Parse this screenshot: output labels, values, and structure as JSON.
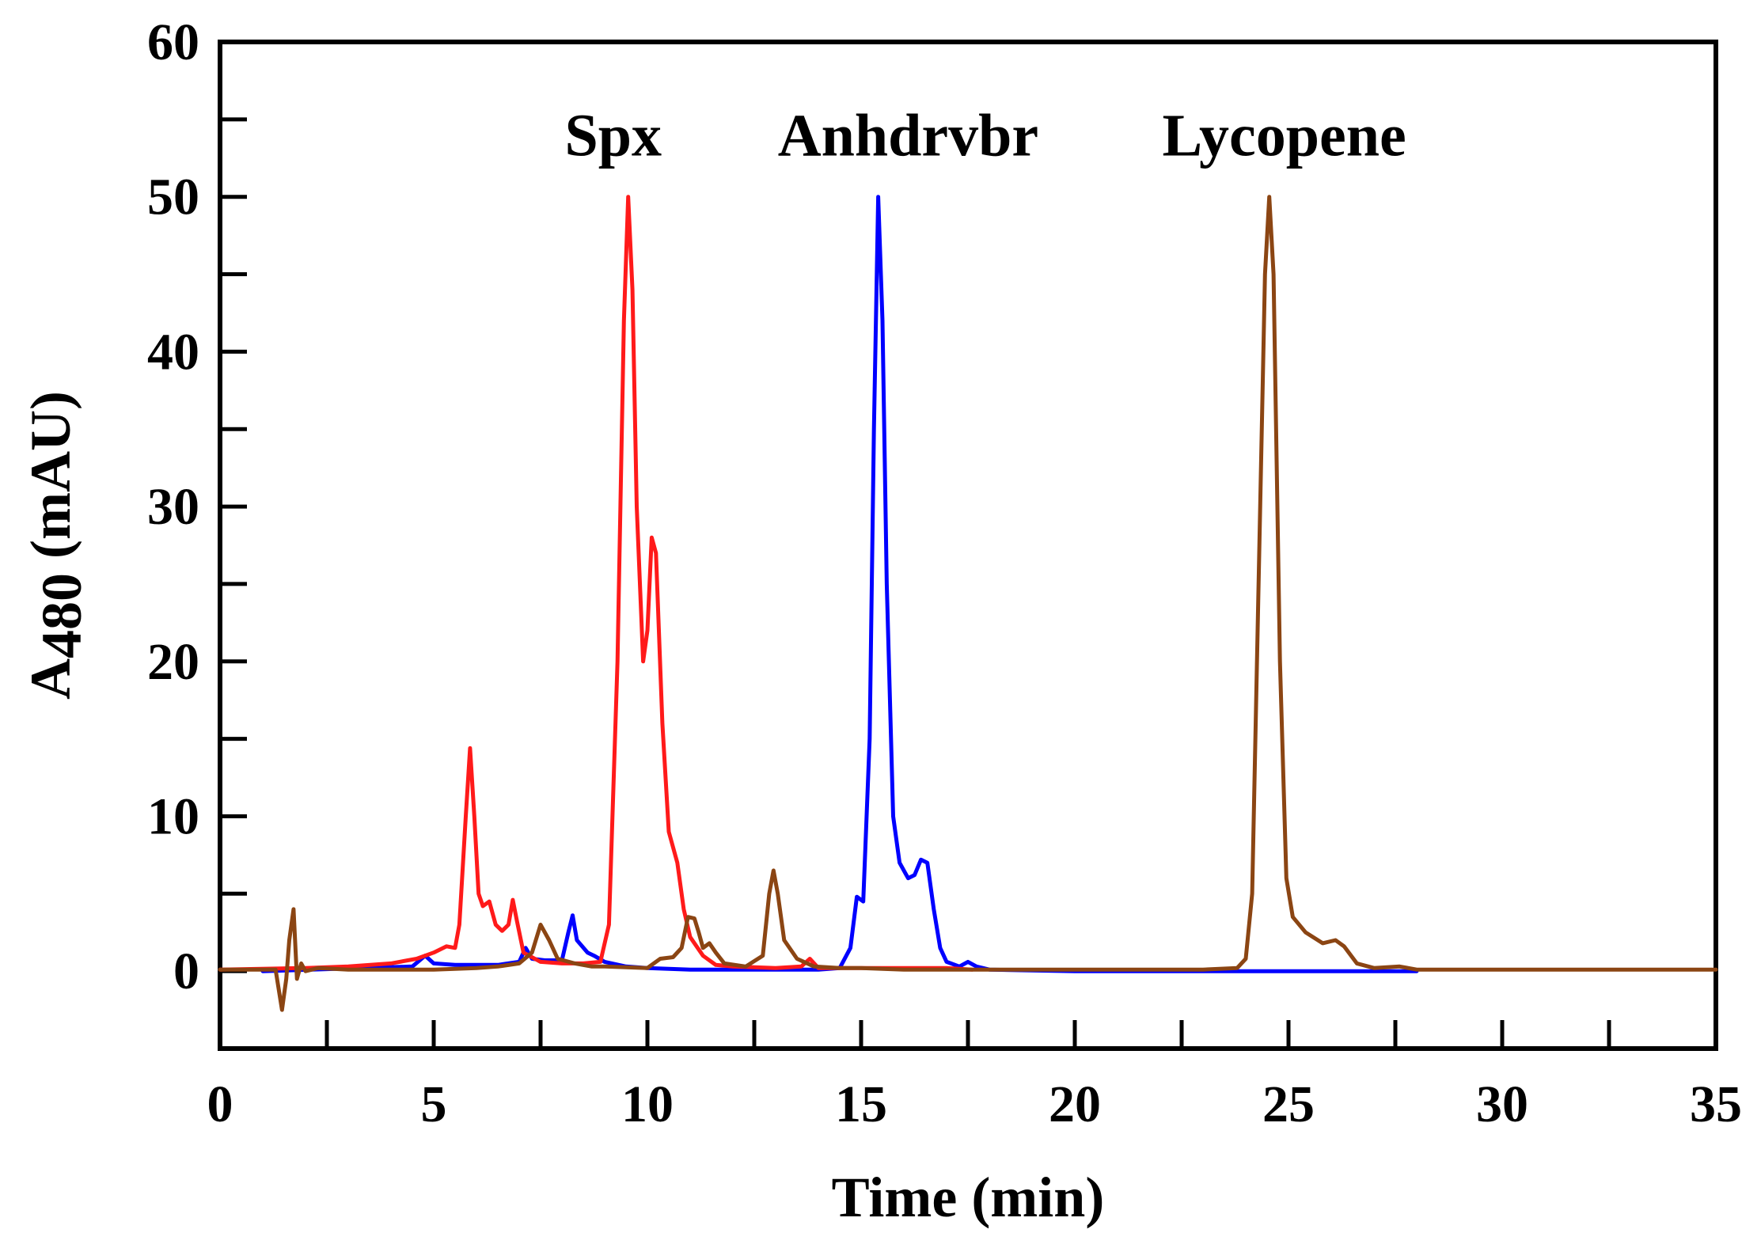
{
  "chart_data": {
    "type": "line",
    "xlabel": "Time (min)",
    "ylabel": "A480 (mAU)",
    "ylabel_main": "A",
    "ylabel_sub": "480",
    "ylabel_rest": " (mAU)",
    "xlim": [
      0,
      35
    ],
    "ylim": [
      -5,
      60
    ],
    "x_ticks": [
      0,
      5,
      10,
      15,
      20,
      25,
      30,
      35
    ],
    "y_ticks": [
      0,
      10,
      20,
      30,
      40,
      50,
      60
    ],
    "grid": false,
    "annotations": [
      {
        "text": "Spx",
        "x": 9.2,
        "y": 54
      },
      {
        "text": "Anhdrvbr",
        "x": 16.1,
        "y": 54
      },
      {
        "text": "Lycopene",
        "x": 24.9,
        "y": 54
      }
    ],
    "series": [
      {
        "color": "#ff1a1a",
        "points": [
          [
            0.0,
            0.1
          ],
          [
            2.0,
            0.2
          ],
          [
            3.0,
            0.3
          ],
          [
            4.0,
            0.5
          ],
          [
            4.6,
            0.8
          ],
          [
            5.0,
            1.2
          ],
          [
            5.3,
            1.6
          ],
          [
            5.5,
            1.5
          ],
          [
            5.6,
            3.0
          ],
          [
            5.75,
            10.0
          ],
          [
            5.85,
            14.4
          ],
          [
            5.95,
            10.0
          ],
          [
            6.05,
            5.0
          ],
          [
            6.15,
            4.2
          ],
          [
            6.3,
            4.5
          ],
          [
            6.45,
            3.0
          ],
          [
            6.6,
            2.6
          ],
          [
            6.75,
            3.0
          ],
          [
            6.85,
            4.6
          ],
          [
            6.95,
            3.2
          ],
          [
            7.1,
            1.2
          ],
          [
            7.5,
            0.6
          ],
          [
            8.0,
            0.5
          ],
          [
            8.5,
            0.5
          ],
          [
            8.9,
            0.6
          ],
          [
            9.1,
            3.0
          ],
          [
            9.3,
            20.0
          ],
          [
            9.45,
            42.0
          ],
          [
            9.55,
            50.0
          ],
          [
            9.65,
            44.0
          ],
          [
            9.75,
            30.0
          ],
          [
            9.9,
            20.0
          ],
          [
            10.0,
            22.0
          ],
          [
            10.1,
            28.0
          ],
          [
            10.2,
            27.0
          ],
          [
            10.35,
            16.0
          ],
          [
            10.5,
            9.0
          ],
          [
            10.7,
            7.0
          ],
          [
            10.85,
            4.0
          ],
          [
            11.0,
            2.2
          ],
          [
            11.3,
            1.0
          ],
          [
            11.6,
            0.4
          ],
          [
            12.0,
            0.3
          ],
          [
            13.0,
            0.2
          ],
          [
            13.6,
            0.3
          ],
          [
            13.8,
            0.8
          ],
          [
            14.0,
            0.2
          ],
          [
            15.0,
            0.2
          ],
          [
            16.0,
            0.2
          ],
          [
            17.0,
            0.2
          ],
          [
            17.6,
            0.1
          ]
        ]
      },
      {
        "color": "#0000ff",
        "points": [
          [
            1.0,
            0.0
          ],
          [
            4.5,
            0.3
          ],
          [
            4.8,
            1.0
          ],
          [
            5.0,
            0.5
          ],
          [
            5.5,
            0.4
          ],
          [
            6.5,
            0.4
          ],
          [
            7.0,
            0.6
          ],
          [
            7.15,
            1.5
          ],
          [
            7.3,
            0.8
          ],
          [
            7.6,
            0.7
          ],
          [
            8.0,
            0.7
          ],
          [
            8.15,
            2.5
          ],
          [
            8.25,
            3.6
          ],
          [
            8.35,
            2.0
          ],
          [
            8.6,
            1.2
          ],
          [
            8.75,
            1.0
          ],
          [
            9.0,
            0.6
          ],
          [
            9.5,
            0.3
          ],
          [
            10.0,
            0.2
          ],
          [
            11.0,
            0.1
          ],
          [
            12.0,
            0.1
          ],
          [
            13.0,
            0.1
          ],
          [
            14.0,
            0.1
          ],
          [
            14.5,
            0.2
          ],
          [
            14.75,
            1.5
          ],
          [
            14.9,
            4.8
          ],
          [
            15.05,
            4.5
          ],
          [
            15.2,
            15.0
          ],
          [
            15.3,
            35.0
          ],
          [
            15.4,
            50.0
          ],
          [
            15.5,
            42.0
          ],
          [
            15.6,
            25.0
          ],
          [
            15.75,
            10.0
          ],
          [
            15.9,
            7.0
          ],
          [
            16.1,
            6.0
          ],
          [
            16.25,
            6.2
          ],
          [
            16.4,
            7.2
          ],
          [
            16.55,
            7.0
          ],
          [
            16.7,
            4.0
          ],
          [
            16.85,
            1.5
          ],
          [
            17.0,
            0.6
          ],
          [
            17.3,
            0.3
          ],
          [
            17.5,
            0.6
          ],
          [
            17.7,
            0.3
          ],
          [
            18.0,
            0.1
          ],
          [
            20.0,
            0.0
          ],
          [
            25.0,
            0.0
          ],
          [
            27.0,
            0.0
          ],
          [
            28.0,
            0.0
          ]
        ]
      },
      {
        "color": "#8b4513",
        "points": [
          [
            0.0,
            0.1
          ],
          [
            1.3,
            0.1
          ],
          [
            1.45,
            -2.5
          ],
          [
            1.55,
            -0.5
          ],
          [
            1.62,
            2.0
          ],
          [
            1.72,
            4.0
          ],
          [
            1.8,
            -0.5
          ],
          [
            1.9,
            0.5
          ],
          [
            2.0,
            0.0
          ],
          [
            2.3,
            0.2
          ],
          [
            3.0,
            0.1
          ],
          [
            4.0,
            0.1
          ],
          [
            5.0,
            0.1
          ],
          [
            6.0,
            0.2
          ],
          [
            6.5,
            0.3
          ],
          [
            7.0,
            0.5
          ],
          [
            7.3,
            1.2
          ],
          [
            7.5,
            3.0
          ],
          [
            7.7,
            2.0
          ],
          [
            7.9,
            0.8
          ],
          [
            8.3,
            0.5
          ],
          [
            8.7,
            0.3
          ],
          [
            9.0,
            0.3
          ],
          [
            10.0,
            0.2
          ],
          [
            10.3,
            0.8
          ],
          [
            10.6,
            0.9
          ],
          [
            10.8,
            1.5
          ],
          [
            10.95,
            3.5
          ],
          [
            11.1,
            3.4
          ],
          [
            11.2,
            2.5
          ],
          [
            11.3,
            1.5
          ],
          [
            11.45,
            1.8
          ],
          [
            11.6,
            1.2
          ],
          [
            11.8,
            0.5
          ],
          [
            12.3,
            0.3
          ],
          [
            12.7,
            1.0
          ],
          [
            12.85,
            5.0
          ],
          [
            12.95,
            6.5
          ],
          [
            13.05,
            5.0
          ],
          [
            13.2,
            2.0
          ],
          [
            13.5,
            0.8
          ],
          [
            13.9,
            0.3
          ],
          [
            14.5,
            0.2
          ],
          [
            15.0,
            0.2
          ],
          [
            16.0,
            0.1
          ],
          [
            17.0,
            0.1
          ],
          [
            18.0,
            0.1
          ],
          [
            19.0,
            0.1
          ],
          [
            20.0,
            0.1
          ],
          [
            21.0,
            0.1
          ],
          [
            22.0,
            0.1
          ],
          [
            23.0,
            0.1
          ],
          [
            23.8,
            0.2
          ],
          [
            24.0,
            0.8
          ],
          [
            24.15,
            5.0
          ],
          [
            24.3,
            25.0
          ],
          [
            24.45,
            45.0
          ],
          [
            24.55,
            50.0
          ],
          [
            24.65,
            45.0
          ],
          [
            24.8,
            20.0
          ],
          [
            24.95,
            6.0
          ],
          [
            25.1,
            3.5
          ],
          [
            25.4,
            2.5
          ],
          [
            25.8,
            1.8
          ],
          [
            26.1,
            2.0
          ],
          [
            26.3,
            1.6
          ],
          [
            26.6,
            0.5
          ],
          [
            27.0,
            0.2
          ],
          [
            27.6,
            0.3
          ],
          [
            28.0,
            0.1
          ],
          [
            30.0,
            0.1
          ],
          [
            35.0,
            0.1
          ]
        ]
      }
    ]
  }
}
